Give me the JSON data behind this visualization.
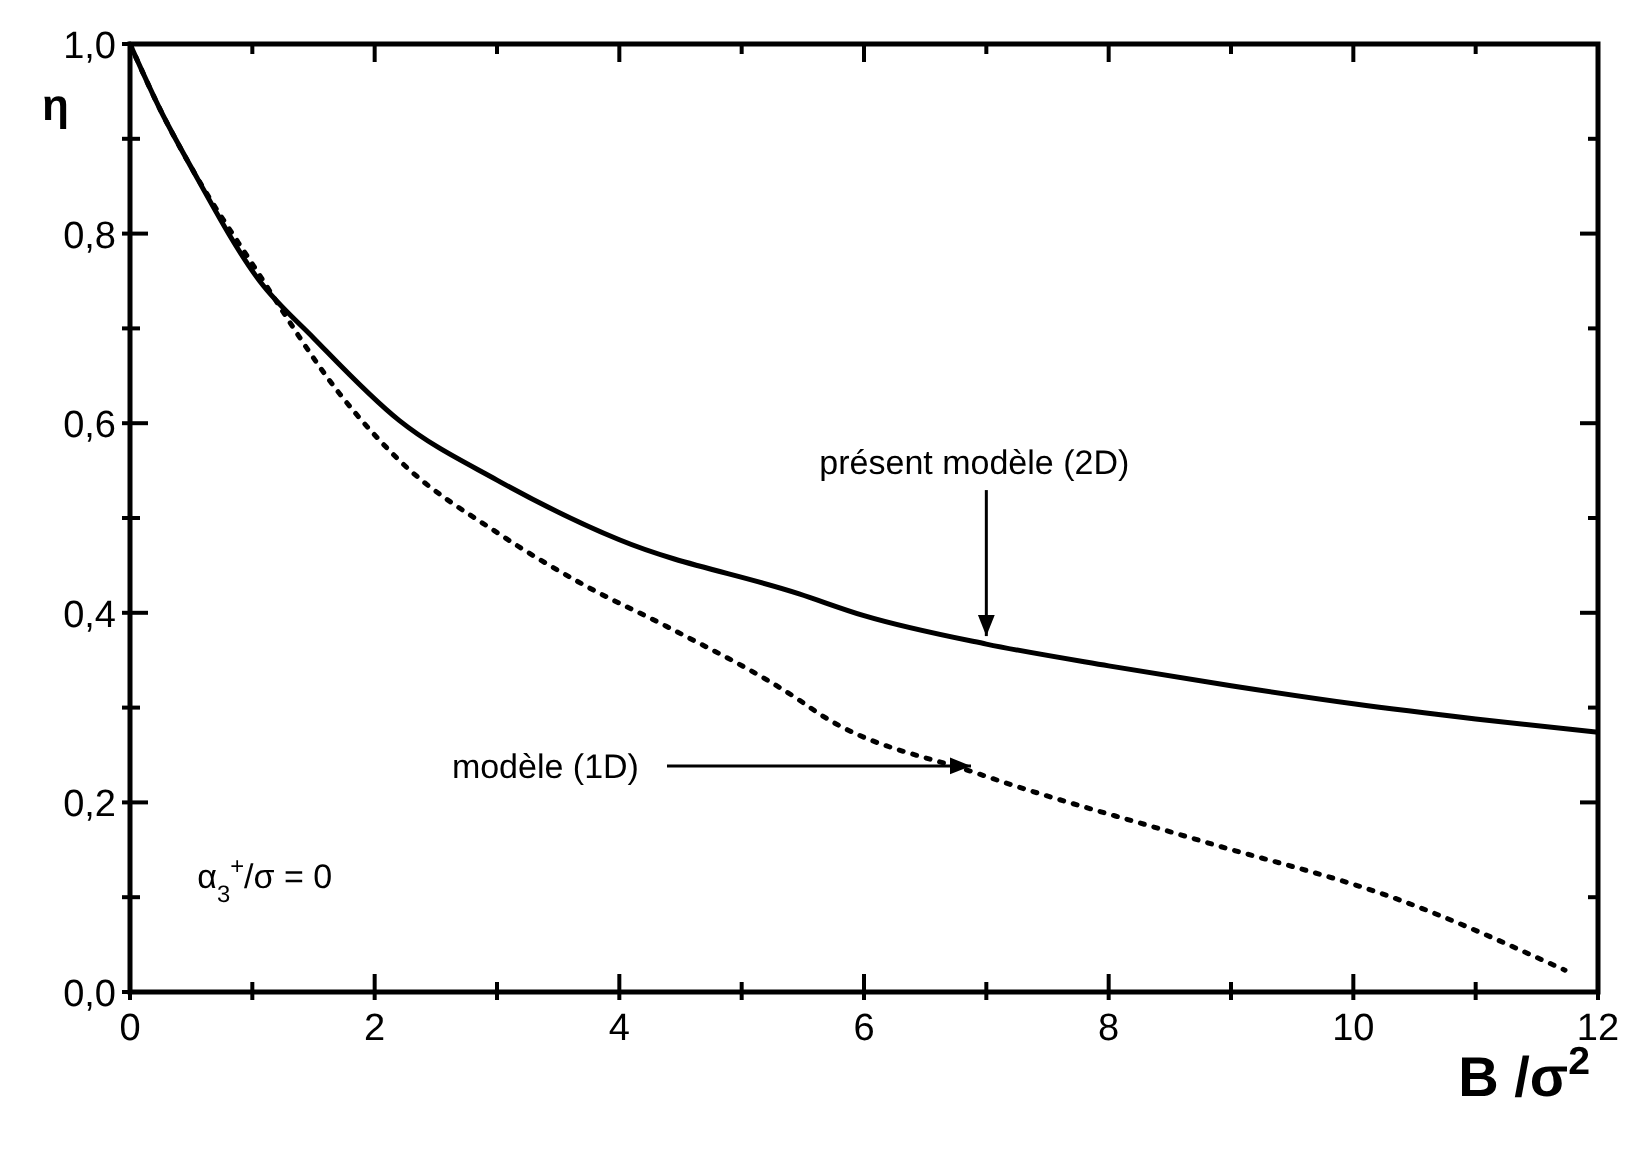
{
  "chart_data": {
    "type": "line",
    "xlabel": "B /σ$^{2}$",
    "ylabel": "η",
    "xlim": [
      0,
      12
    ],
    "ylim": [
      0,
      1
    ],
    "xticks": [
      0,
      {
        "value": 1,
        "label": null
      },
      2,
      {
        "value": 3,
        "label": null
      },
      4,
      {
        "value": 5,
        "label": null
      },
      6,
      {
        "value": 7,
        "label": null
      },
      8,
      {
        "value": 9,
        "label": null
      },
      10,
      {
        "value": 11,
        "label": null
      },
      12
    ],
    "yticks": [
      {
        "value": 0,
        "label": "0,0"
      },
      {
        "value": 0.1,
        "label": null
      },
      {
        "value": 0.2,
        "label": "0,2"
      },
      {
        "value": 0.3,
        "label": null
      },
      {
        "value": 0.4,
        "label": "0,4"
      },
      {
        "value": 0.5,
        "label": null
      },
      {
        "value": 0.6,
        "label": "0,6"
      },
      {
        "value": 0.7,
        "label": null
      },
      {
        "value": 0.8,
        "label": "0,8"
      },
      {
        "value": 0.9,
        "label": null
      },
      {
        "value": 1,
        "label": "1,0"
      }
    ],
    "grid": false,
    "series": [
      {
        "color": "#000000",
        "line_style": "solid",
        "x": [
          0,
          0.25,
          0.5,
          1.06,
          1.5,
          2.2,
          3,
          4,
          5.47,
          6,
          7,
          8,
          9,
          10,
          11,
          12
        ],
        "values": [
          1,
          0.93,
          0.87,
          0.75,
          0.69,
          0.603,
          0.54,
          0.477,
          0.42,
          0.397,
          0.367,
          0.344,
          0.323,
          0.304,
          0.288,
          0.274
        ]
      },
      {
        "color": "#000000",
        "line_style": "dotted",
        "x": [
          0,
          0.25,
          0.5,
          1.01,
          1.72,
          2.2,
          3.02,
          3.73,
          4.38,
          5.47,
          5.64,
          6.94,
          8.74,
          10.38,
          11.73
        ],
        "values": [
          1,
          0.93,
          0.87,
          0.766,
          0.63,
          0.561,
          0.483,
          0.428,
          0.386,
          0.308,
          0.293,
          0.23,
          0.16,
          0.097,
          0.023
        ]
      }
    ],
    "annotations": [
      {
        "text": "présent modèle (2D)",
        "x": 7,
        "y": 0.367
      },
      {
        "text": "modèle (1D)",
        "x": 6.94,
        "y": 0.23
      },
      "α$_{3}$$^{+}$/σ = 0"
    ]
  }
}
